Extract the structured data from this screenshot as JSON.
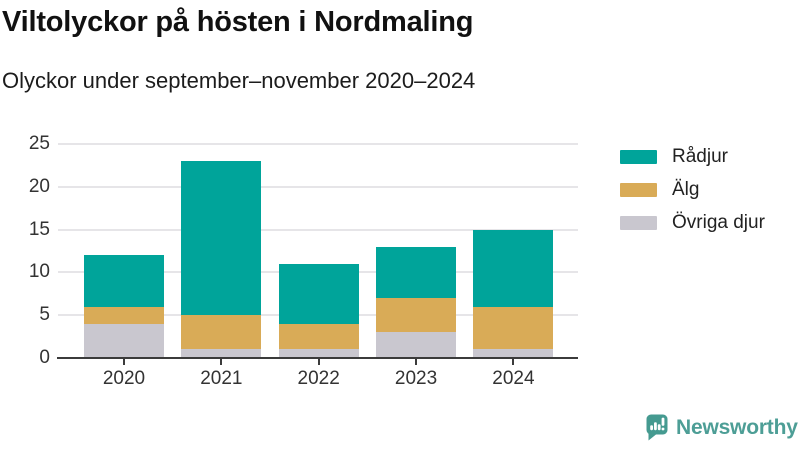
{
  "header": {
    "title": "Viltolyckor på hösten i Nordmaling",
    "subtitle": "Olyckor under september–november 2020–2024"
  },
  "chart_data": {
    "type": "bar",
    "stacked": true,
    "title": "Viltolyckor på hösten i Nordmaling",
    "subtitle": "Olyckor under september–november 2020–2024",
    "categories": [
      "2020",
      "2021",
      "2022",
      "2023",
      "2024"
    ],
    "series": [
      {
        "name": "Rådjur",
        "color": "#00a49a",
        "values": [
          6,
          18,
          7,
          6,
          9
        ]
      },
      {
        "name": "Älg",
        "color": "#d9ab57",
        "values": [
          2,
          4,
          3,
          4,
          5
        ]
      },
      {
        "name": "Övriga djur",
        "color": "#c9c7cf",
        "values": [
          4,
          1,
          1,
          3,
          1
        ]
      }
    ],
    "stack_order_bottom_to_top": [
      "Övriga djur",
      "Älg",
      "Rådjur"
    ],
    "totals": [
      12,
      23,
      11,
      13,
      15
    ],
    "xlabel": "",
    "ylabel": "",
    "ylim": [
      0,
      25
    ],
    "yticks": [
      "0",
      "5",
      "10",
      "15",
      "20",
      "25"
    ],
    "grid": "horizontal",
    "legend_position": "right"
  },
  "colors": {
    "radjur": "#00a49a",
    "alg": "#d9ab57",
    "ovriga": "#c9c7cf",
    "gridline": "#e6e5e8",
    "axis": "#3b3b3b",
    "brand_teal": "#4d9e96"
  },
  "footer": {
    "brand": "Newsworthy"
  }
}
